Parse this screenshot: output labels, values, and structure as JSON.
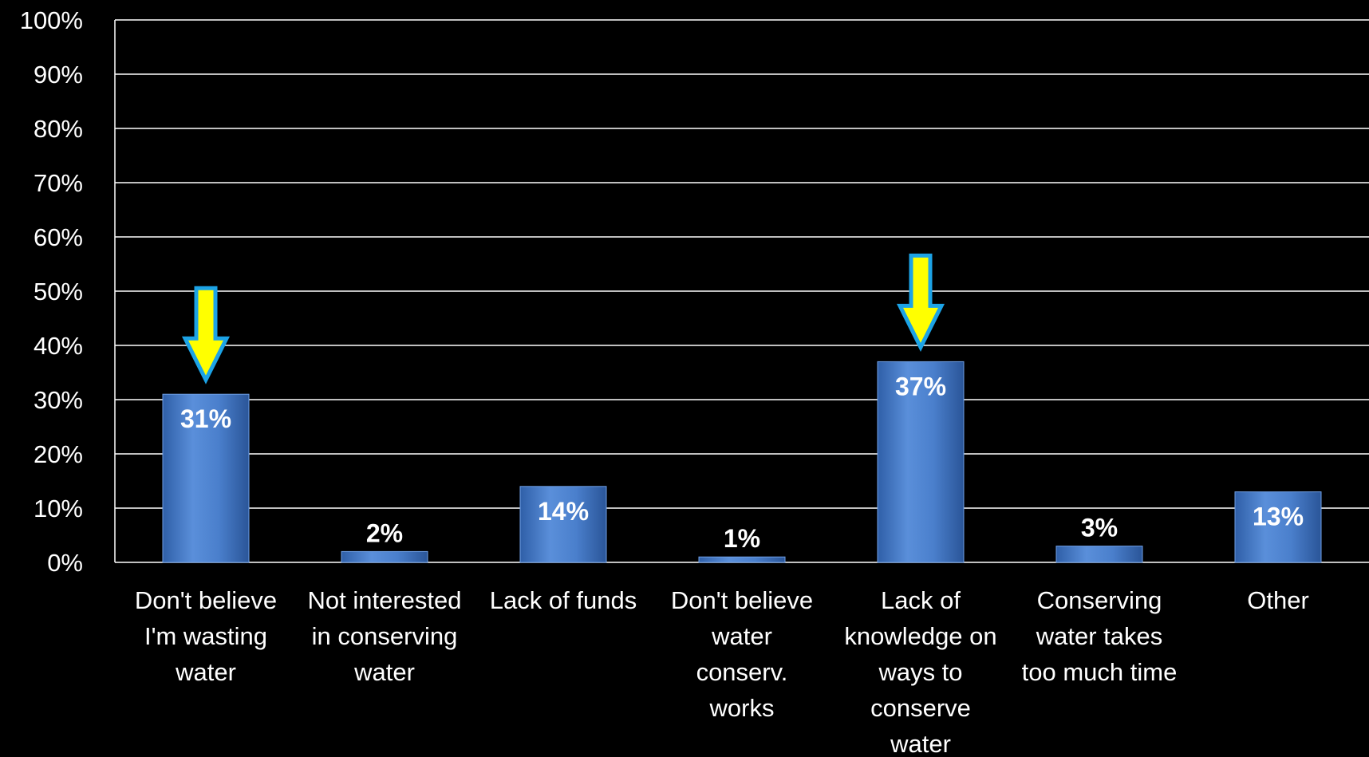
{
  "chart_data": {
    "type": "bar",
    "title": "",
    "xlabel": "",
    "ylabel": "",
    "categories": [
      [
        "Don't believe",
        "I'm wasting",
        "water"
      ],
      [
        "Not interested",
        "in conserving",
        "water"
      ],
      [
        "Lack of funds"
      ],
      [
        "Don't believe",
        "water",
        "conserv.",
        "works"
      ],
      [
        "Lack of",
        "knowledge on",
        "ways to",
        "conserve",
        "water"
      ],
      [
        "Conserving",
        "water takes",
        "too much time"
      ],
      [
        "Other"
      ]
    ],
    "values": [
      31,
      2,
      14,
      1,
      37,
      3,
      13
    ],
    "data_labels": [
      "31%",
      "2%",
      "14%",
      "1%",
      "37%",
      "3%",
      "13%"
    ],
    "ylim": [
      0,
      100
    ],
    "yticks": [
      "0%",
      "10%",
      "20%",
      "30%",
      "40%",
      "50%",
      "60%",
      "70%",
      "80%",
      "90%",
      "100%"
    ],
    "grid": true,
    "legend": "none",
    "highlighted_categories": [
      0,
      4
    ],
    "colors": {
      "background": "#000000",
      "bar": "#4a7fcc",
      "gridline": "#ffffff",
      "text": "#ffffff",
      "arrow_fill": "#ffff00",
      "arrow_outline": "#1ca3e6"
    }
  }
}
